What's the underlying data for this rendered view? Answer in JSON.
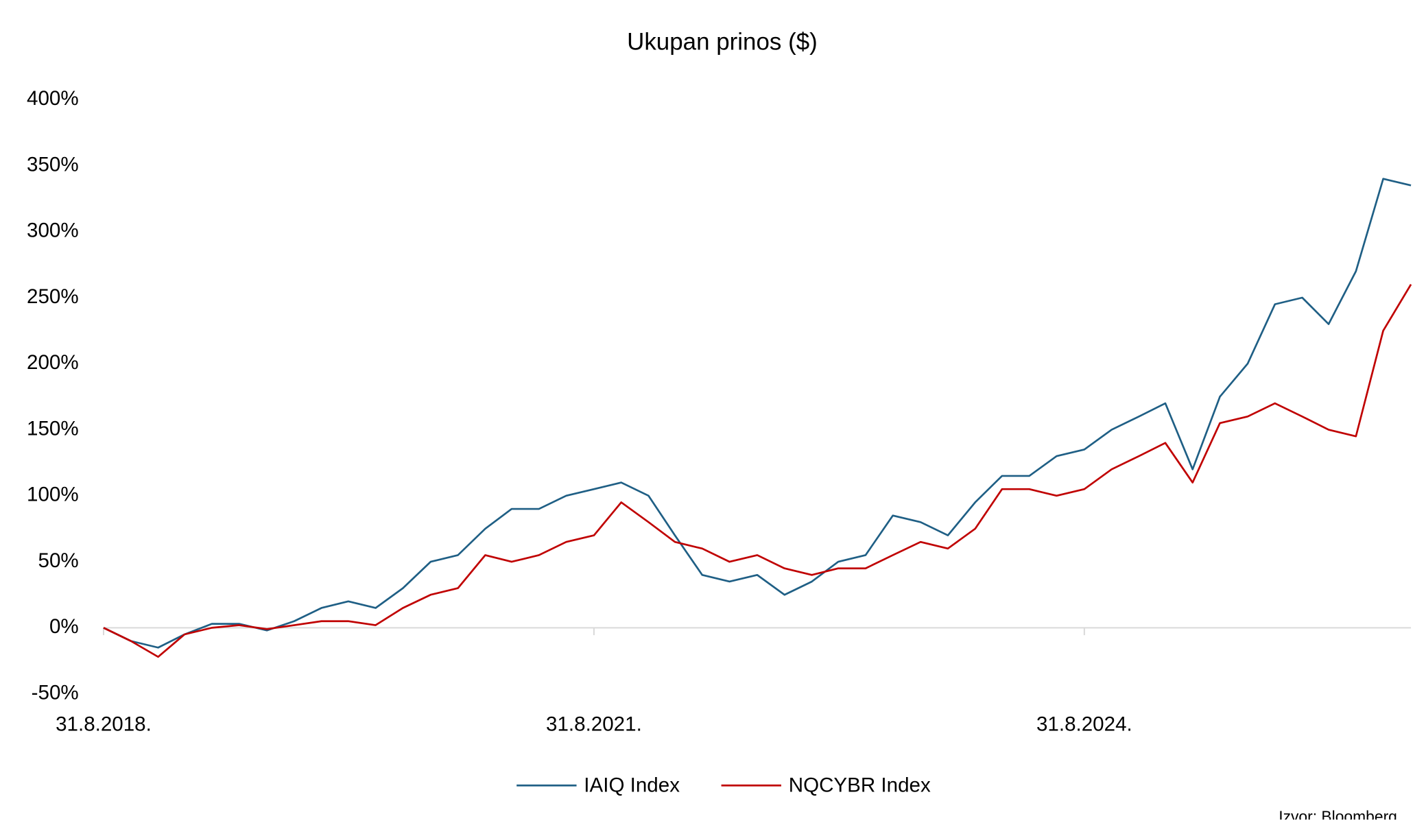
{
  "chart_data": {
    "type": "line",
    "title": "Ukupan prinos ($)",
    "source": "Izvor: Bloomberg",
    "x": [
      "2018-08-31",
      "2018-10-31",
      "2018-12-31",
      "2019-02-28",
      "2019-04-30",
      "2019-06-30",
      "2019-08-31",
      "2019-10-31",
      "2019-12-31",
      "2020-02-29",
      "2020-04-30",
      "2020-06-30",
      "2020-08-31",
      "2020-10-31",
      "2020-12-31",
      "2021-02-28",
      "2021-04-30",
      "2021-06-30",
      "2021-08-31",
      "2021-10-31",
      "2021-12-31",
      "2022-02-28",
      "2022-04-30",
      "2022-06-30",
      "2022-08-31",
      "2022-10-31",
      "2022-12-31",
      "2023-02-28",
      "2023-04-30",
      "2023-06-30",
      "2023-08-31",
      "2023-10-31",
      "2023-12-31",
      "2024-02-29",
      "2024-04-30",
      "2024-06-30",
      "2024-08-31",
      "2024-10-31",
      "2024-12-31",
      "2025-02-28",
      "2025-04-30",
      "2025-06-30",
      "2025-08-31",
      "2025-10-31",
      "2025-12-31",
      "2026-02-28",
      "2026-04-30",
      "2026-06-30",
      "2026-08-31"
    ],
    "series": [
      {
        "name": "IAIQ Index",
        "color": "#1f5f85",
        "values": [
          0,
          -10,
          -15,
          -5,
          3,
          3,
          -2,
          5,
          15,
          20,
          15,
          30,
          50,
          55,
          75,
          90,
          90,
          100,
          105,
          110,
          100,
          70,
          40,
          35,
          40,
          25,
          35,
          50,
          55,
          85,
          80,
          70,
          95,
          115,
          115,
          130,
          135,
          150,
          160,
          170,
          120,
          175,
          200,
          245,
          250,
          230,
          270,
          340,
          335
        ]
      },
      {
        "name": "NQCYBR Index",
        "color": "#c00000",
        "values": [
          0,
          -10,
          -22,
          -5,
          0,
          2,
          -1,
          2,
          5,
          5,
          2,
          15,
          25,
          30,
          55,
          50,
          55,
          65,
          70,
          95,
          80,
          65,
          60,
          50,
          55,
          45,
          40,
          45,
          45,
          55,
          65,
          60,
          75,
          105,
          105,
          100,
          105,
          120,
          130,
          140,
          110,
          155,
          160,
          170,
          160,
          150,
          145,
          225,
          260
        ]
      }
    ],
    "xlim": [
      "2018-08-31",
      "2026-08-31"
    ],
    "xticks": [
      {
        "value": "2018-08-31",
        "label": "31.8.2018."
      },
      {
        "value": "2021-08-31",
        "label": "31.8.2021."
      },
      {
        "value": "2024-08-31",
        "label": "31.8.2024."
      }
    ],
    "ylim": [
      -50,
      400
    ],
    "yticks": [
      {
        "value": -50,
        "label": "-50%"
      },
      {
        "value": 0,
        "label": "0%"
      },
      {
        "value": 50,
        "label": "50%"
      },
      {
        "value": 100,
        "label": "100%"
      },
      {
        "value": 150,
        "label": "150%"
      },
      {
        "value": 200,
        "label": "200%"
      },
      {
        "value": 250,
        "label": "250%"
      },
      {
        "value": 300,
        "label": "300%"
      },
      {
        "value": 350,
        "label": "350%"
      },
      {
        "value": 400,
        "label": "400%"
      }
    ],
    "grid": false
  }
}
